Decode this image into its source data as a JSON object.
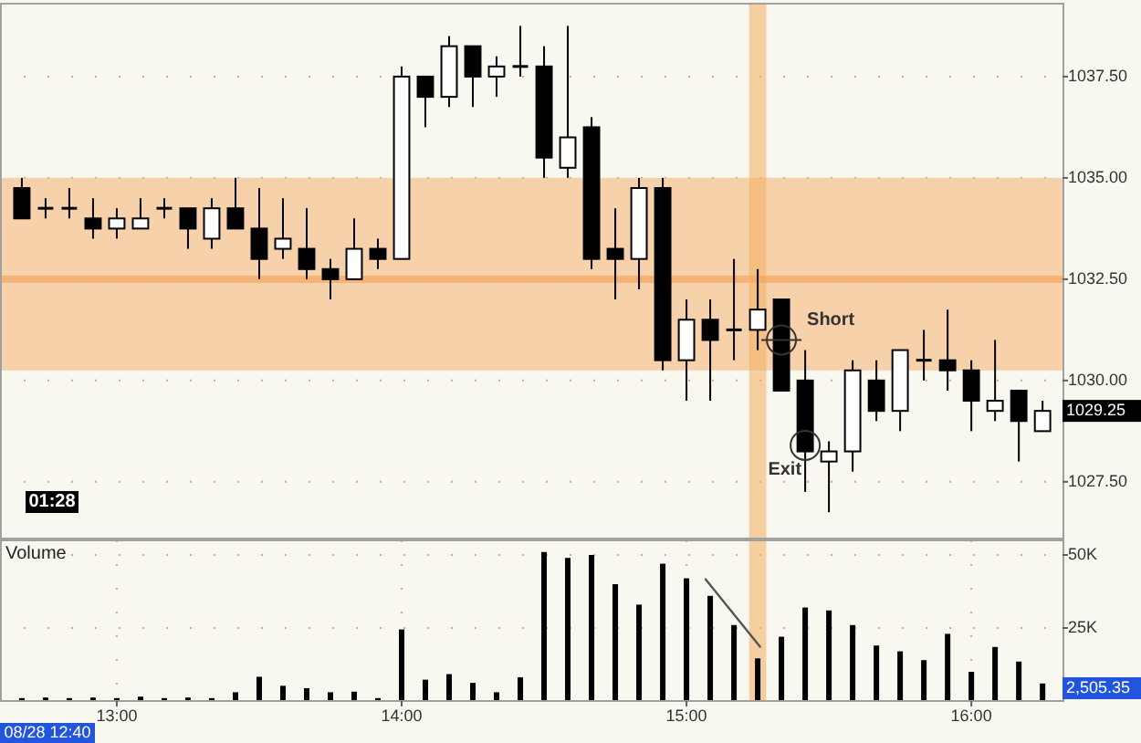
{
  "chart_data": [
    {
      "type": "candlestick",
      "x": [
        12.6667,
        12.75,
        12.8333,
        12.9167,
        13,
        13.0833,
        13.1667,
        13.25,
        13.3333,
        13.4167,
        13.5,
        13.5833,
        13.6667,
        13.75,
        13.8333,
        13.9167,
        14,
        14.0833,
        14.1667,
        14.25,
        14.3333,
        14.4167,
        14.5,
        14.5833,
        14.6667,
        14.75,
        14.8333,
        14.9167,
        15,
        15.0833,
        15.1667,
        15.25,
        15.3333,
        15.4167,
        15.5,
        15.5833,
        15.6667,
        15.75,
        15.8333,
        15.9167,
        16,
        16.0833,
        16.1667,
        16.25
      ],
      "ohlc": [
        [
          1034.75,
          1035.0,
          1034.0,
          1034.0
        ],
        [
          1034.25,
          1034.5,
          1034.0,
          1034.25
        ],
        [
          1034.25,
          1034.75,
          1034.0,
          1034.25
        ],
        [
          1034.0,
          1034.5,
          1033.5,
          1033.75
        ],
        [
          1033.75,
          1034.25,
          1033.5,
          1034.0
        ],
        [
          1033.75,
          1034.5,
          1033.75,
          1034.0
        ],
        [
          1034.25,
          1034.5,
          1034.0,
          1034.25
        ],
        [
          1034.25,
          1034.25,
          1033.25,
          1033.75
        ],
        [
          1033.5,
          1034.5,
          1033.25,
          1034.25
        ],
        [
          1034.25,
          1035.0,
          1033.75,
          1033.75
        ],
        [
          1033.75,
          1034.75,
          1032.5,
          1033.0
        ],
        [
          1033.25,
          1034.5,
          1033.0,
          1033.5
        ],
        [
          1033.25,
          1034.25,
          1032.5,
          1032.75
        ],
        [
          1032.75,
          1033.0,
          1032.0,
          1032.5
        ],
        [
          1032.5,
          1034.0,
          1032.5,
          1033.25
        ],
        [
          1033.25,
          1033.5,
          1032.75,
          1033.0
        ],
        [
          1033.0,
          1037.75,
          1033.0,
          1037.5
        ],
        [
          1037.5,
          1037.5,
          1036.25,
          1037.0
        ],
        [
          1037.0,
          1038.5,
          1036.75,
          1038.25
        ],
        [
          1038.25,
          1038.25,
          1036.75,
          1037.5
        ],
        [
          1037.5,
          1038.0,
          1037.0,
          1037.75
        ],
        [
          1037.75,
          1038.75,
          1037.5,
          1037.75
        ],
        [
          1037.75,
          1038.25,
          1035.0,
          1035.5
        ],
        [
          1035.25,
          1038.75,
          1035.0,
          1036.0
        ],
        [
          1036.25,
          1036.5,
          1032.75,
          1033.0
        ],
        [
          1033.25,
          1034.25,
          1032.0,
          1033.0
        ],
        [
          1033.0,
          1035.0,
          1032.25,
          1034.75
        ],
        [
          1034.75,
          1035.0,
          1030.25,
          1030.5
        ],
        [
          1030.5,
          1032.0,
          1029.5,
          1031.5
        ],
        [
          1031.5,
          1032.0,
          1029.5,
          1031.0
        ],
        [
          1031.25,
          1033.0,
          1030.5,
          1031.25
        ],
        [
          1031.25,
          1032.75,
          1030.75,
          1031.75
        ],
        [
          1032.0,
          1032.0,
          1029.75,
          1029.75
        ],
        [
          1030.0,
          1030.75,
          1027.25,
          1028.25
        ],
        [
          1028.0,
          1028.5,
          1026.75,
          1028.25
        ],
        [
          1028.25,
          1030.5,
          1027.75,
          1030.25
        ],
        [
          1030.0,
          1030.5,
          1029.0,
          1029.25
        ],
        [
          1029.25,
          1030.75,
          1028.75,
          1030.75
        ],
        [
          1030.5,
          1031.25,
          1030.0,
          1030.5
        ],
        [
          1030.5,
          1031.75,
          1029.75,
          1030.25
        ],
        [
          1030.25,
          1030.5,
          1028.75,
          1029.5
        ],
        [
          1029.25,
          1031.0,
          1029.0,
          1029.5
        ],
        [
          1029.75,
          1029.75,
          1028.0,
          1029.0
        ],
        [
          1028.75,
          1029.5,
          1028.75,
          1029.25
        ]
      ],
      "color": "#000000",
      "xlim": [
        12.59,
        16.32
      ],
      "ylim": [
        1026.1,
        1039.3
      ],
      "yticks": [
        {
          "value": 1027.5,
          "label": "1027.50"
        },
        {
          "value": 1030,
          "label": "1030.00"
        },
        {
          "value": 1032.5,
          "label": "1032.50"
        },
        {
          "value": 1035,
          "label": "1035.00"
        },
        {
          "value": 1037.5,
          "label": "1037.50"
        }
      ],
      "tick_labels": "y",
      "grid": true,
      "bands": [
        {
          "axis": "y",
          "from": 1030.25,
          "to": 1035,
          "color": "#f5c08a"
        },
        {
          "axis": "x",
          "from": 15.22,
          "to": 15.28,
          "color": "#f5b26b"
        }
      ],
      "ref_lines": [
        {
          "axis": "y",
          "value": 1032.5,
          "color": "#f5a860"
        }
      ],
      "annotations": [
        "01:28",
        {
          "text": "Short",
          "x": 15.3333,
          "y": 1031.0
        },
        {
          "text": "Exit",
          "x": 15.4167,
          "y": 1028.4
        },
        {
          "text": "1029.25",
          "x": 16.25,
          "y": 1029.25
        }
      ]
    },
    {
      "type": "bar",
      "title": "Volume",
      "xlim": [
        12.59,
        16.32
      ],
      "xticks": [
        {
          "value": 13,
          "label": "13:00"
        },
        {
          "value": 14,
          "label": "14:00"
        },
        {
          "value": 15,
          "label": "15:00"
        },
        {
          "value": 16,
          "label": "16:00"
        }
      ],
      "ylim": [
        0,
        55
      ],
      "yticks": [
        {
          "value": 25,
          "label": "25K"
        },
        {
          "value": 50,
          "label": "50K"
        }
      ],
      "grid": true,
      "series": [
        {
          "color": "#000000",
          "x": [
            12.6667,
            12.75,
            12.8333,
            12.9167,
            13,
            13.0833,
            13.1667,
            13.25,
            13.3333,
            13.4167,
            13.5,
            13.5833,
            13.6667,
            13.75,
            13.8333,
            13.9167,
            14,
            14.0833,
            14.1667,
            14.25,
            14.3333,
            14.4167,
            14.5,
            14.5833,
            14.6667,
            14.75,
            14.8333,
            14.9167,
            15,
            15.0833,
            15.1667,
            15.25,
            15.3333,
            15.4167,
            15.5,
            15.5833,
            15.6667,
            15.75,
            15.8333,
            15.9167,
            16,
            16.0833,
            16.1667,
            16.25
          ],
          "values": [
            1,
            1.2,
            1,
            1.2,
            1,
            1.5,
            1,
            1.2,
            1,
            3,
            8.3,
            5.2,
            4.4,
            3,
            3.2,
            1,
            24.5,
            7.3,
            9.2,
            6.2,
            3,
            8.1,
            51,
            49,
            50,
            40,
            33,
            47,
            42,
            36,
            26,
            14.6,
            22,
            32,
            31,
            26,
            19,
            17,
            14,
            23,
            10,
            18.5,
            13.5,
            6
          ]
        },
        {
          "type": "line",
          "color": "#555555",
          "x": [
            15.0667,
            15.2583
          ],
          "values": [
            41.7,
            18.6
          ]
        }
      ],
      "bands": [
        {
          "axis": "x",
          "from": 15.22,
          "to": 15.28,
          "color": "#f5b26b"
        }
      ],
      "annotations": [
        "08/28 12:40",
        "2,505.35"
      ]
    }
  ]
}
